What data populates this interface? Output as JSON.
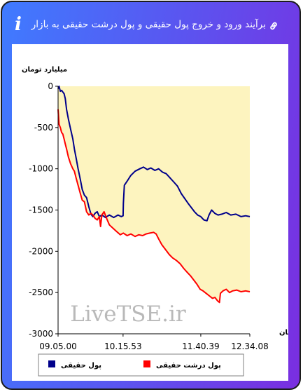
{
  "header": {
    "title": "برآیند ورود و خروج پول حقیقی و پول درشت حقیقی به بازار",
    "link_icon": "link-icon",
    "info_icon": "info-icon",
    "info_glyph": "i"
  },
  "chart_data": {
    "type": "line",
    "ylabel": "میلیارد تومان",
    "xlabel": "زمان",
    "ylim": [
      -3000,
      0
    ],
    "yticks": [
      0,
      -500,
      -1000,
      -1500,
      -2000,
      -2500,
      -3000
    ],
    "xlim": [
      "09.05.00",
      "12.34.08"
    ],
    "xticks": [
      "09.05.00",
      "10.15.53",
      "11.40.39",
      "12.34.08"
    ],
    "grid": false,
    "legend_position": "bottom",
    "watermark": "LiveTSE.ir",
    "series": [
      {
        "name": "پول حقیقی",
        "color": "#00008b",
        "fill_color": "#e9e7b3",
        "points": [
          [
            "09.05.00",
            -30
          ],
          [
            "09.06.04",
            0
          ],
          [
            "09.07.26",
            -60
          ],
          [
            "09.08.48",
            -50
          ],
          [
            "09.10.10",
            -70
          ],
          [
            "09.11.32",
            -90
          ],
          [
            "09.12.53",
            -150
          ],
          [
            "09.14.15",
            -280
          ],
          [
            "09.16.18",
            -400
          ],
          [
            "09.18.40",
            -520
          ],
          [
            "09.21.05",
            -640
          ],
          [
            "09.22.46",
            -760
          ],
          [
            "09.24.50",
            -880
          ],
          [
            "09.26.52",
            -1000
          ],
          [
            "09.29.16",
            -1130
          ],
          [
            "09.31.19",
            -1250
          ],
          [
            "09.33.42",
            -1320
          ],
          [
            "09.36.06",
            -1350
          ],
          [
            "09.38.29",
            -1460
          ],
          [
            "09.40.52",
            -1550
          ],
          [
            "09.42.54",
            -1580
          ],
          [
            "09.45.18",
            -1540
          ],
          [
            "09.47.41",
            -1520
          ],
          [
            "09.50.04",
            -1580
          ],
          [
            "09.52.48",
            -1560
          ],
          [
            "09.56.31",
            -1590
          ],
          [
            "10.00.55",
            -1560
          ],
          [
            "10.05.40",
            -1590
          ],
          [
            "10.10.24",
            -1560
          ],
          [
            "10.13.50",
            -1580
          ],
          [
            "10.15.53",
            -1570
          ],
          [
            "10.16.14",
            -1420
          ],
          [
            "10.17.16",
            -1200
          ],
          [
            "10.20.22",
            -1150
          ],
          [
            "10.24.25",
            -1080
          ],
          [
            "10.28.57",
            -1030
          ],
          [
            "10.34.07",
            -1000
          ],
          [
            "10.38.13",
            -980
          ],
          [
            "10.42.19",
            -1010
          ],
          [
            "10.46.07",
            -990
          ],
          [
            "10.50.36",
            -1020
          ],
          [
            "10.54.41",
            -1000
          ],
          [
            "10.58.48",
            -1040
          ],
          [
            "11.02.54",
            -1060
          ],
          [
            "11.07.02",
            -1110
          ],
          [
            "11.11.08",
            -1160
          ],
          [
            "11.15.14",
            -1210
          ],
          [
            "11.19.21",
            -1300
          ],
          [
            "11.23.06",
            -1360
          ],
          [
            "11.26.55",
            -1420
          ],
          [
            "11.30.20",
            -1470
          ],
          [
            "11.33.46",
            -1520
          ],
          [
            "11.37.13",
            -1560
          ],
          [
            "11.40.39",
            -1580
          ],
          [
            "11.43.57",
            -1620
          ],
          [
            "11.47.24",
            -1630
          ],
          [
            "11.49.36",
            -1560
          ],
          [
            "11.52.26",
            -1500
          ],
          [
            "11.55.58",
            -1540
          ],
          [
            "11.59.28",
            -1560
          ],
          [
            "12.03.36",
            -1550
          ],
          [
            "12.08.26",
            -1530
          ],
          [
            "12.13.23",
            -1560
          ],
          [
            "12.18.57",
            -1550
          ],
          [
            "12.24.32",
            -1580
          ],
          [
            "12.29.33",
            -1570
          ],
          [
            "12.34.08",
            -1580
          ]
        ]
      },
      {
        "name": "پول درشت حقیقی",
        "color": "#ff0000",
        "fill_color": "#fdf4bf",
        "points": [
          [
            "09.05.00",
            -280
          ],
          [
            "09.06.04",
            -460
          ],
          [
            "09.07.26",
            -500
          ],
          [
            "09.08.48",
            -560
          ],
          [
            "09.10.10",
            -580
          ],
          [
            "09.11.32",
            -640
          ],
          [
            "09.12.53",
            -700
          ],
          [
            "09.14.15",
            -760
          ],
          [
            "09.16.18",
            -860
          ],
          [
            "09.18.40",
            -940
          ],
          [
            "09.21.05",
            -1000
          ],
          [
            "09.22.46",
            -1030
          ],
          [
            "09.24.50",
            -1120
          ],
          [
            "09.26.52",
            -1200
          ],
          [
            "09.29.16",
            -1300
          ],
          [
            "09.31.19",
            -1380
          ],
          [
            "09.33.42",
            -1400
          ],
          [
            "09.36.06",
            -1520
          ],
          [
            "09.38.29",
            -1560
          ],
          [
            "09.40.52",
            -1540
          ],
          [
            "09.42.54",
            -1560
          ],
          [
            "09.45.18",
            -1600
          ],
          [
            "09.47.41",
            -1620
          ],
          [
            "09.50.04",
            -1580
          ],
          [
            "09.51.20",
            -1700
          ],
          [
            "09.52.48",
            -1560
          ],
          [
            "09.55.10",
            -1520
          ],
          [
            "09.57.33",
            -1590
          ],
          [
            "10.00.55",
            -1680
          ],
          [
            "10.04.49",
            -1720
          ],
          [
            "10.08.50",
            -1760
          ],
          [
            "10.12.52",
            -1800
          ],
          [
            "10.16.14",
            -1780
          ],
          [
            "10.20.22",
            -1810
          ],
          [
            "10.24.25",
            -1790
          ],
          [
            "10.28.57",
            -1820
          ],
          [
            "10.33.06",
            -1800
          ],
          [
            "10.37.10",
            -1810
          ],
          [
            "10.40.55",
            -1790
          ],
          [
            "10.45.03",
            -1780
          ],
          [
            "10.49.09",
            -1770
          ],
          [
            "10.51.58",
            -1790
          ],
          [
            "10.54.41",
            -1850
          ],
          [
            "10.58.06",
            -1920
          ],
          [
            "11.02.13",
            -1980
          ],
          [
            "11.06.19",
            -2040
          ],
          [
            "11.09.50",
            -2080
          ],
          [
            "11.13.57",
            -2110
          ],
          [
            "11.18.03",
            -2150
          ],
          [
            "11.22.09",
            -2210
          ],
          [
            "11.26.15",
            -2260
          ],
          [
            "11.29.40",
            -2300
          ],
          [
            "11.33.06",
            -2350
          ],
          [
            "11.36.32",
            -2400
          ],
          [
            "11.39.57",
            -2460
          ],
          [
            "11.43.05",
            -2480
          ],
          [
            "11.46.31",
            -2510
          ],
          [
            "11.49.57",
            -2540
          ],
          [
            "11.53.23",
            -2570
          ],
          [
            "11.56.08",
            -2560
          ],
          [
            "11.58.54",
            -2600
          ],
          [
            "12.01.00",
            -2620
          ],
          [
            "12.02.06",
            -2510
          ],
          [
            "12.04.50",
            -2480
          ],
          [
            "12.08.26",
            -2460
          ],
          [
            "12.12.00",
            -2500
          ],
          [
            "12.15.20",
            -2480
          ],
          [
            "12.19.48",
            -2470
          ],
          [
            "12.24.32",
            -2490
          ],
          [
            "12.29.33",
            -2480
          ],
          [
            "12.34.08",
            -2490
          ]
        ]
      }
    ]
  }
}
